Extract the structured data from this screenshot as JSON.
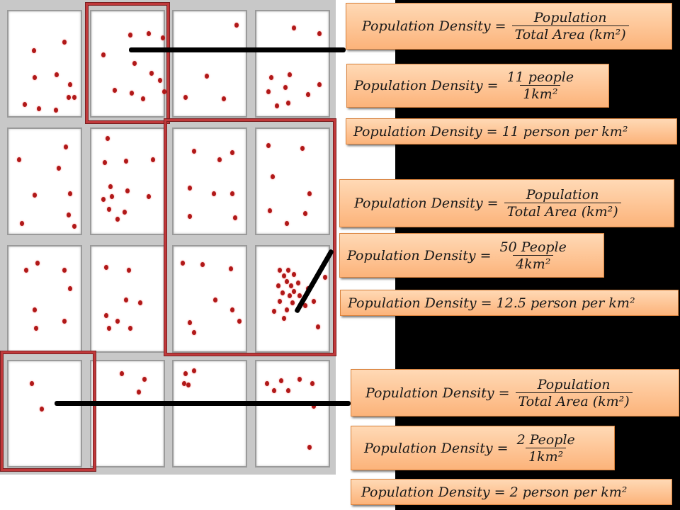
{
  "groups": [
    {
      "general": {
        "lhs": "Population Density =",
        "num": "Population",
        "den": "Total Area (km²)"
      },
      "specific": {
        "lhs": "Population Density =",
        "num": "11 people",
        "den": "1km²"
      },
      "result": "Population Density = 11 person per km²"
    },
    {
      "general": {
        "lhs": "Population Density =",
        "num": "Population",
        "den": "Total Area (km²)"
      },
      "specific": {
        "lhs": "Population Density =",
        "num": "50 People",
        "den": "4km²"
      },
      "result": "Population Density = 12.5 person per km²"
    },
    {
      "general": {
        "lhs": "Population Density =",
        "num": "Population",
        "den": "Total Area (km²)"
      },
      "specific": {
        "lhs": "Population Density =",
        "num": "2 People",
        "den": "1km²"
      },
      "result": "Population Density = 2 person per km²"
    }
  ],
  "colors": {
    "dot": "#b01818",
    "selection": "#c0393b",
    "box": "#fcb37a",
    "background_right": "#000000"
  }
}
